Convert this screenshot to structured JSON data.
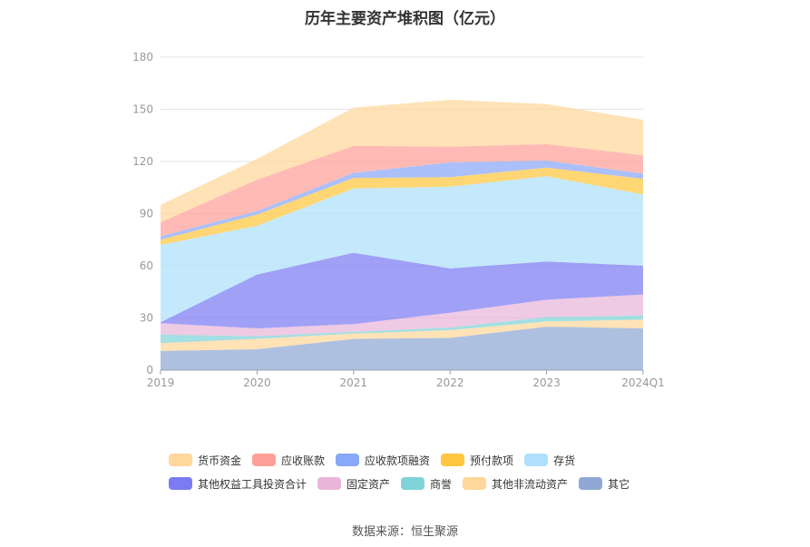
{
  "title": "历年主要资产堆积图（亿元）",
  "source": "数据来源：恒生聚源",
  "chart_data": {
    "type": "area",
    "stacked": true,
    "title": "历年主要资产堆积图（亿元）",
    "xlabel": "",
    "ylabel": "",
    "categories": [
      "2019",
      "2020",
      "2021",
      "2022",
      "2023",
      "2024Q1"
    ],
    "ylim": [
      0,
      180
    ],
    "yticks": [
      0,
      30,
      60,
      90,
      120,
      150,
      180
    ],
    "grid": true,
    "legend_position": "bottom",
    "series": [
      {
        "name": "其它",
        "color": "#8fa8d4",
        "values": [
          11,
          12,
          18,
          18.5,
          25,
          24
        ]
      },
      {
        "name": "其他非流动资产",
        "color": "#ffd79a",
        "values": [
          4.5,
          6,
          3,
          4.5,
          3,
          5
        ]
      },
      {
        "name": "商誉",
        "color": "#7fd3d8",
        "values": [
          5,
          1.5,
          1,
          1.5,
          2.5,
          2.5
        ]
      },
      {
        "name": "固定资产",
        "color": "#e9b6d9",
        "values": [
          6.5,
          4.5,
          4.5,
          8.5,
          10,
          12
        ]
      },
      {
        "name": "其他权益工具投资合计",
        "color": "#7b7cf3",
        "values": [
          0.5,
          31,
          41,
          25.5,
          22,
          16.5
        ]
      },
      {
        "name": "存货",
        "color": "#aee0fb",
        "values": [
          44.5,
          28,
          37,
          47,
          49,
          41
        ]
      },
      {
        "name": "预付款项",
        "color": "#ffc63f",
        "values": [
          3,
          6.5,
          6,
          5.5,
          5,
          9
        ]
      },
      {
        "name": "应收款项融资",
        "color": "#8aa8f8",
        "values": [
          2,
          2,
          3,
          8.5,
          4,
          3
        ]
      },
      {
        "name": "应收账款",
        "color": "#ff9f98",
        "values": [
          8,
          18,
          15.5,
          9,
          9.5,
          10.5
        ]
      },
      {
        "name": "货币资金",
        "color": "#ffd79a",
        "values": [
          10,
          12,
          22,
          27,
          23,
          20.5
        ]
      }
    ]
  },
  "legend_rows": [
    [
      "货币资金",
      "应收账款",
      "应收款项融资",
      "预付款项",
      "存货"
    ],
    [
      "其他权益工具投资合计",
      "固定资产",
      "商誉",
      "其他非流动资产",
      "其它"
    ]
  ]
}
